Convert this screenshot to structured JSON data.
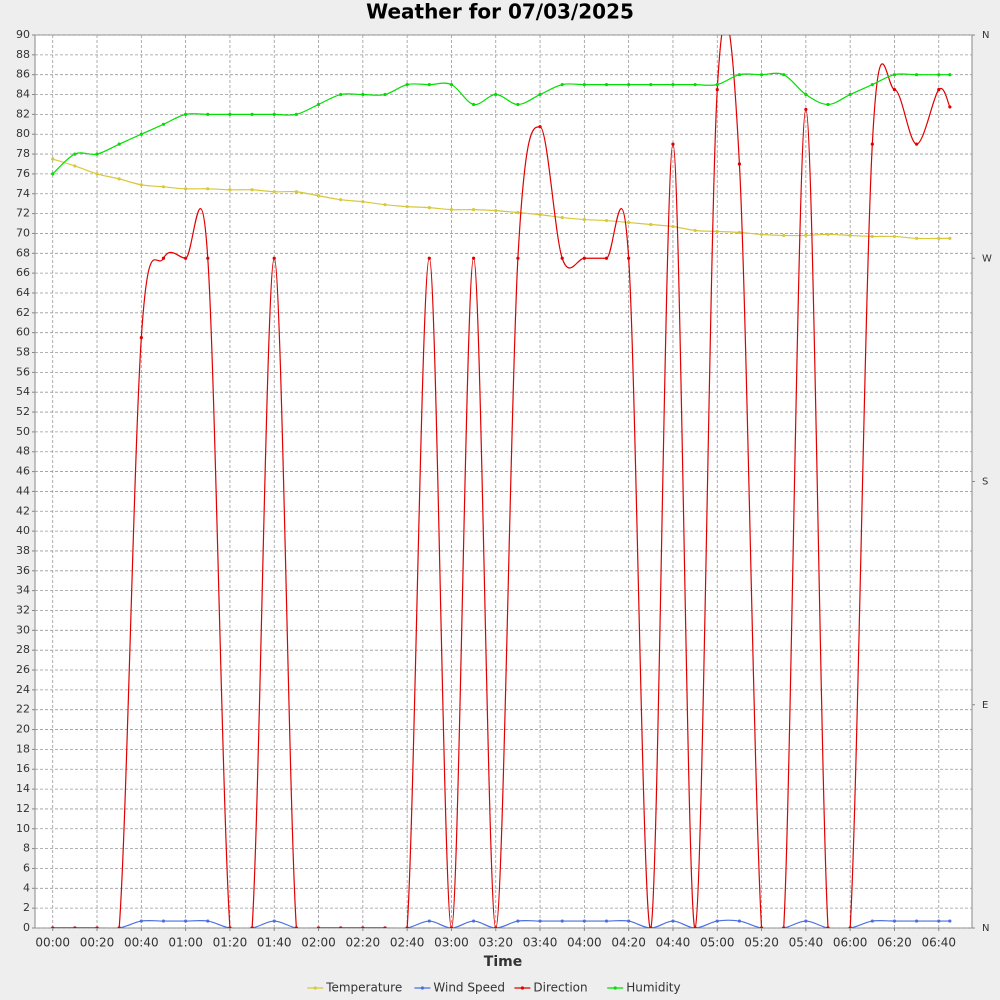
{
  "chart_data": {
    "type": "line",
    "title": "Weather for 07/03/2025",
    "x_label": "Time",
    "x": [
      0,
      10,
      20,
      30,
      40,
      50,
      60,
      70,
      80,
      90,
      100,
      110,
      120,
      130,
      140,
      150,
      160,
      170,
      180,
      190,
      200,
      210,
      220,
      230,
      240,
      250,
      260,
      270,
      280,
      290,
      300,
      310,
      320,
      330,
      340,
      350,
      360,
      370,
      380,
      390,
      400,
      405
    ],
    "xlim": [
      -8,
      415
    ],
    "xticks": [
      {
        "value": 0,
        "label": "00:00"
      },
      {
        "value": 20,
        "label": "00:20"
      },
      {
        "value": 40,
        "label": "00:40"
      },
      {
        "value": 60,
        "label": "01:00"
      },
      {
        "value": 80,
        "label": "01:20"
      },
      {
        "value": 100,
        "label": "01:40"
      },
      {
        "value": 120,
        "label": "02:00"
      },
      {
        "value": 140,
        "label": "02:20"
      },
      {
        "value": 160,
        "label": "02:40"
      },
      {
        "value": 180,
        "label": "03:00"
      },
      {
        "value": 200,
        "label": "03:20"
      },
      {
        "value": 220,
        "label": "03:40"
      },
      {
        "value": 240,
        "label": "04:00"
      },
      {
        "value": 260,
        "label": "04:20"
      },
      {
        "value": 280,
        "label": "04:40"
      },
      {
        "value": 300,
        "label": "05:00"
      },
      {
        "value": 320,
        "label": "05:20"
      },
      {
        "value": 340,
        "label": "05:40"
      },
      {
        "value": 360,
        "label": "06:00"
      },
      {
        "value": 380,
        "label": "06:20"
      },
      {
        "value": 400,
        "label": "06:40"
      }
    ],
    "ylim": [
      0,
      90
    ],
    "yticks": [
      0,
      2,
      4,
      6,
      8,
      10,
      12,
      14,
      16,
      18,
      20,
      22,
      24,
      26,
      28,
      30,
      32,
      34,
      36,
      38,
      40,
      42,
      44,
      46,
      48,
      50,
      52,
      54,
      56,
      58,
      60,
      62,
      64,
      66,
      68,
      70,
      72,
      74,
      76,
      78,
      80,
      82,
      84,
      86,
      88,
      90
    ],
    "y2lim": [
      0,
      360
    ],
    "y2ticks": [
      {
        "value": 0,
        "label": "N"
      },
      {
        "value": 90,
        "label": "E"
      },
      {
        "value": 180,
        "label": "S"
      },
      {
        "value": 270,
        "label": "W"
      },
      {
        "value": 360,
        "label": "N"
      }
    ],
    "grid": true,
    "legend": "bottom",
    "series": [
      {
        "name": "Temperature",
        "color": "#d8c83c",
        "values": [
          77.5,
          76.8,
          76,
          75.5,
          74.9,
          74.7,
          74.5,
          74.5,
          74.4,
          74.4,
          74.2,
          74.2,
          73.8,
          73.4,
          73.2,
          72.9,
          72.7,
          72.6,
          72.4,
          72.4,
          72.3,
          72.1,
          71.9,
          71.6,
          71.4,
          71.3,
          71.1,
          70.9,
          70.7,
          70.3,
          70.2,
          70.1,
          69.9,
          69.8,
          69.8,
          69.9,
          69.8,
          69.7,
          69.7,
          69.5,
          69.5,
          69.5
        ]
      },
      {
        "name": "Wind Speed",
        "color": "#4a6ee0",
        "values": [
          0,
          0,
          0,
          0,
          0.7,
          0.7,
          0.7,
          0.7,
          0,
          0,
          0.7,
          0,
          0,
          0,
          0,
          0,
          0,
          0.7,
          0,
          0.7,
          0,
          0.7,
          0.7,
          0.7,
          0.7,
          0.7,
          0.7,
          0,
          0.7,
          0,
          0.7,
          0.7,
          0,
          0,
          0.7,
          0,
          0,
          0.7,
          0.7,
          0.7,
          0.7,
          0.7
        ]
      },
      {
        "name": "Direction",
        "color": "#e00000",
        "axis": "y2",
        "values": [
          0,
          0,
          0,
          0,
          238,
          270,
          270,
          270,
          0,
          0,
          270,
          0,
          0,
          0,
          0,
          0,
          0,
          270,
          0,
          270,
          0,
          270,
          323,
          270,
          270,
          270,
          270,
          0,
          316,
          0,
          338,
          308,
          0,
          0,
          330,
          0,
          0,
          316,
          338,
          316,
          338,
          331
        ]
      },
      {
        "name": "Humidity",
        "color": "#00e000",
        "values": [
          76,
          78,
          78,
          79,
          80,
          81,
          82,
          82,
          82,
          82,
          82,
          82,
          83,
          84,
          84,
          84,
          85,
          85,
          85,
          83,
          84,
          83,
          84,
          85,
          85,
          85,
          85,
          85,
          85,
          85,
          85,
          86,
          86,
          86,
          84,
          83,
          84,
          85,
          86,
          86,
          86,
          86
        ]
      }
    ]
  }
}
